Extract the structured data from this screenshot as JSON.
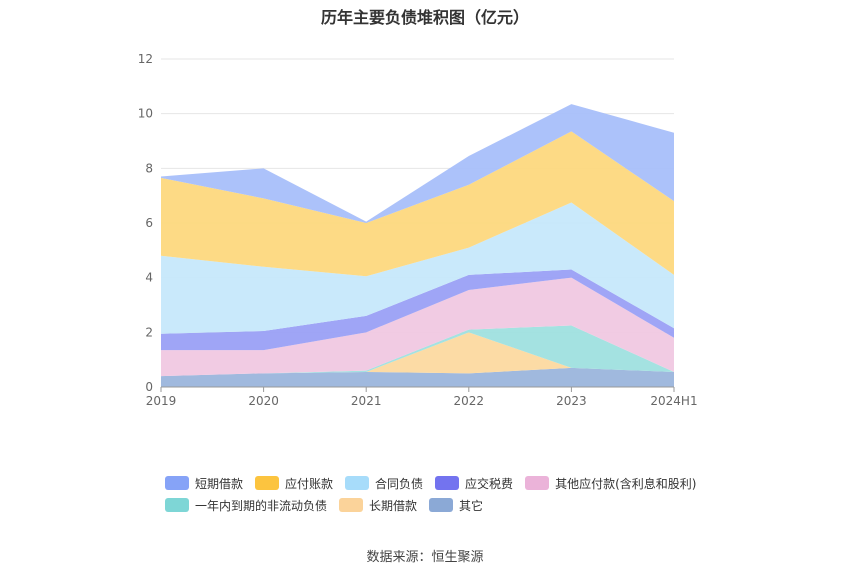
{
  "chart_data": {
    "type": "area",
    "stacked": true,
    "title": "历年主要负债堆积图（亿元）",
    "categories": [
      "2019",
      "2020",
      "2021",
      "2022",
      "2023",
      "2024H1"
    ],
    "ylim": [
      0,
      12
    ],
    "yticks": [
      0,
      2,
      4,
      6,
      8,
      10,
      12
    ],
    "grid": true,
    "legend_position": "bottom",
    "series": [
      {
        "name": "其它",
        "color": "#9bb5dc",
        "values": [
          0.4,
          0.5,
          0.55,
          0.5,
          0.7,
          0.55
        ]
      },
      {
        "name": "长期借款",
        "color": "#fcd9a0",
        "values": [
          0,
          0,
          0,
          1.5,
          0,
          0
        ]
      },
      {
        "name": "一年内到期的非流动负债",
        "color": "#9fe0df",
        "values": [
          0,
          0,
          0.05,
          0.1,
          1.55,
          0
        ]
      },
      {
        "name": "其他应付款(含利息和股利)",
        "color": "#f0c8e2",
        "values": [
          0.95,
          0.85,
          1.4,
          1.45,
          1.75,
          1.25
        ]
      },
      {
        "name": "应交税费",
        "color": "#9aa0f6",
        "values": [
          0.6,
          0.7,
          0.6,
          0.55,
          0.3,
          0.35
        ]
      },
      {
        "name": "合同负债",
        "color": "#c6e8fb",
        "values": [
          2.85,
          2.35,
          1.45,
          1.0,
          2.45,
          1.95
        ]
      },
      {
        "name": "应付账款",
        "color": "#fdd87e",
        "values": [
          2.85,
          2.5,
          1.95,
          2.3,
          2.6,
          2.7
        ]
      },
      {
        "name": "短期借款",
        "color": "#a8bffa",
        "values": [
          0.05,
          1.1,
          0.05,
          1.05,
          1.0,
          2.5
        ]
      }
    ],
    "legend": {
      "rows": [
        [
          {
            "name": "短期借款",
            "color": "#86a3f7"
          },
          {
            "name": "应付账款",
            "color": "#fcc43f"
          },
          {
            "name": "合同负债",
            "color": "#a7dcfa"
          },
          {
            "name": "应交税费",
            "color": "#7373ef"
          },
          {
            "name": "其他应付款(含利息和股利)",
            "color": "#ebb3d9"
          }
        ],
        [
          {
            "name": "一年内到期的非流动负债",
            "color": "#7ed6d6"
          },
          {
            "name": "长期借款",
            "color": "#fbd39a"
          },
          {
            "name": "其它",
            "color": "#8ba9d6"
          }
        ]
      ]
    }
  },
  "source": "数据来源：恒生聚源"
}
